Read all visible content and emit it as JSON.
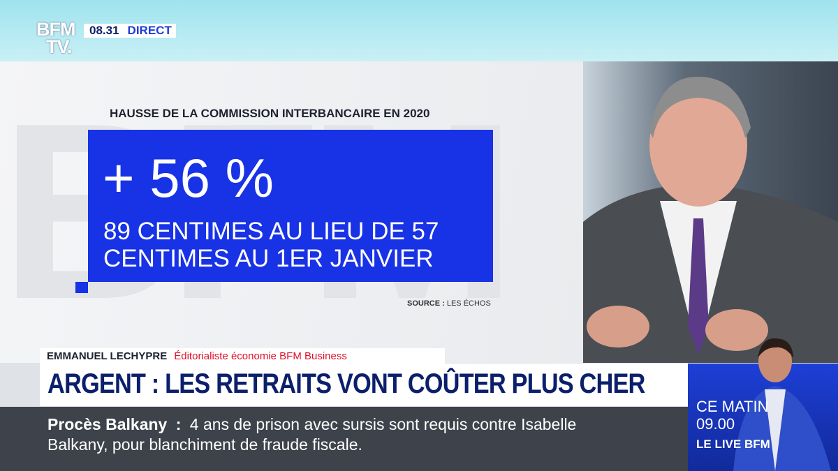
{
  "header": {
    "logo_top": "BFM",
    "logo_bottom": "TV.",
    "time": "08.31",
    "live": "DIRECT"
  },
  "infographic": {
    "title": "HAUSSE DE LA COMMISSION INTERBANCAIRE EN 2020",
    "headline": "+ 56 %",
    "lines": [
      "89 CENTIMES AU LIEU DE 57",
      "CENTIMES AU 1ER JANVIER"
    ],
    "source_label": "SOURCE :",
    "source": "LES ÉCHOS"
  },
  "speaker": {
    "name": "EMMANUEL LECHYPRE",
    "role": "Éditorialiste économie BFM Business"
  },
  "headline": "ARGENT : LES RETRAITS VONT COÛTER PLUS CHER",
  "ticker": {
    "topic": "Procès Balkany",
    "separator": ":",
    "lines": [
      "4 ans de prison avec sursis sont requis contre Isabelle",
      "Balkany, pour blanchiment de fraude fiscale."
    ]
  },
  "promo": {
    "line1": "CE MATIN",
    "time": "09.00",
    "show": "LE LIVE BFM"
  }
}
